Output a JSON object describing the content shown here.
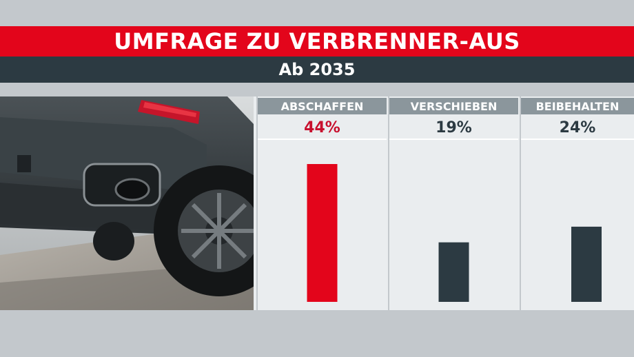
{
  "header": {
    "title": "UMFRAGE ZU VERBRENNER-AUS",
    "subtitle": "Ab 2035"
  },
  "photo": {
    "icon": "car-exhaust-photo"
  },
  "colors": {
    "title_bg": "#e3051b",
    "subtitle_bg": "#2c3a42",
    "header_cell_bg": "#8b969c",
    "highlight": "#e3051b",
    "neutral_bar": "#2c3a42",
    "value_text_default": "#2c3a42",
    "value_text_highlight": "#c8102e"
  },
  "chart_data": {
    "type": "bar",
    "categories": [
      "ABSCHAFFEN",
      "VERSCHIEBEN",
      "BEIBEHALTEN"
    ],
    "values": [
      44,
      19,
      24
    ],
    "value_labels": [
      "44%",
      "19%",
      "24%"
    ],
    "highlight_index": 0,
    "ylim": [
      0,
      50
    ],
    "grid": false,
    "legend": "none"
  }
}
